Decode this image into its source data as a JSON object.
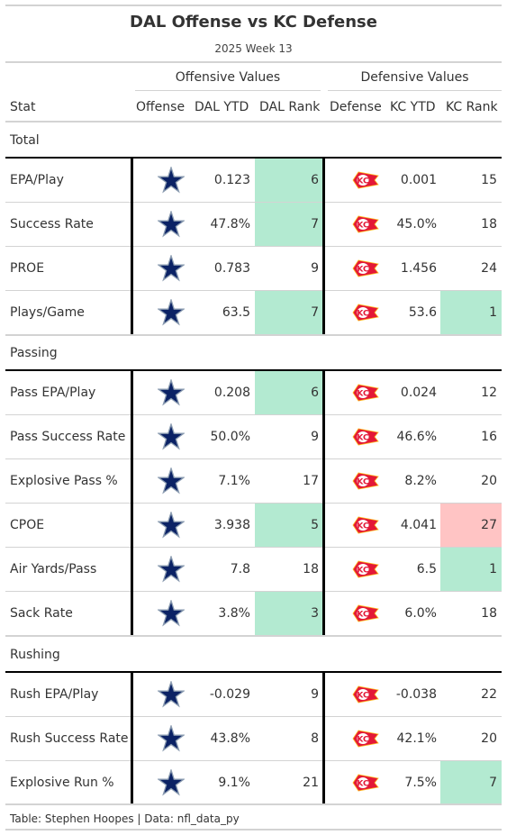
{
  "title": "DAL Offense vs KC Defense",
  "subtitle": "2025 Week 13",
  "spanners": {
    "offense": "Offensive Values",
    "defense": "Defensive Values"
  },
  "columns": {
    "stat": "Stat",
    "offense": "Offense",
    "off_ytd": "DAL YTD",
    "off_rank": "DAL Rank",
    "defense": "Defense",
    "def_ytd": "KC YTD",
    "def_rank": "KC Rank"
  },
  "colors": {
    "good": "#b3ead1",
    "bad": "#ffc4c4",
    "cowboys_blue": "#0b2265",
    "chiefs_red": "#e31837",
    "chiefs_gold": "#ffb81c"
  },
  "groups": [
    {
      "label": "Total",
      "rows": [
        {
          "stat": "EPA/Play",
          "off_ytd": "0.123",
          "off_rank": "6",
          "off_rank_hl": "good",
          "def_ytd": "0.001",
          "def_rank": "15",
          "def_rank_hl": ""
        },
        {
          "stat": "Success Rate",
          "off_ytd": "47.8%",
          "off_rank": "7",
          "off_rank_hl": "good",
          "def_ytd": "45.0%",
          "def_rank": "18",
          "def_rank_hl": ""
        },
        {
          "stat": "PROE",
          "off_ytd": "0.783",
          "off_rank": "9",
          "off_rank_hl": "",
          "def_ytd": "1.456",
          "def_rank": "24",
          "def_rank_hl": ""
        },
        {
          "stat": "Plays/Game",
          "off_ytd": "63.5",
          "off_rank": "7",
          "off_rank_hl": "good",
          "def_ytd": "53.6",
          "def_rank": "1",
          "def_rank_hl": "good"
        }
      ]
    },
    {
      "label": "Passing",
      "rows": [
        {
          "stat": "Pass EPA/Play",
          "off_ytd": "0.208",
          "off_rank": "6",
          "off_rank_hl": "good",
          "def_ytd": "0.024",
          "def_rank": "12",
          "def_rank_hl": ""
        },
        {
          "stat": "Pass Success Rate",
          "off_ytd": "50.0%",
          "off_rank": "9",
          "off_rank_hl": "",
          "def_ytd": "46.6%",
          "def_rank": "16",
          "def_rank_hl": ""
        },
        {
          "stat": "Explosive Pass %",
          "off_ytd": "7.1%",
          "off_rank": "17",
          "off_rank_hl": "",
          "def_ytd": "8.2%",
          "def_rank": "20",
          "def_rank_hl": ""
        },
        {
          "stat": "CPOE",
          "off_ytd": "3.938",
          "off_rank": "5",
          "off_rank_hl": "good",
          "def_ytd": "4.041",
          "def_rank": "27",
          "def_rank_hl": "bad"
        },
        {
          "stat": "Air Yards/Pass",
          "off_ytd": "7.8",
          "off_rank": "18",
          "off_rank_hl": "",
          "def_ytd": "6.5",
          "def_rank": "1",
          "def_rank_hl": "good"
        },
        {
          "stat": "Sack Rate",
          "off_ytd": "3.8%",
          "off_rank": "3",
          "off_rank_hl": "good",
          "def_ytd": "6.0%",
          "def_rank": "18",
          "def_rank_hl": ""
        }
      ]
    },
    {
      "label": "Rushing",
      "rows": [
        {
          "stat": "Rush EPA/Play",
          "off_ytd": "-0.029",
          "off_rank": "9",
          "off_rank_hl": "",
          "def_ytd": "-0.038",
          "def_rank": "22",
          "def_rank_hl": ""
        },
        {
          "stat": "Rush Success Rate",
          "off_ytd": "43.8%",
          "off_rank": "8",
          "off_rank_hl": "",
          "def_ytd": "42.1%",
          "def_rank": "20",
          "def_rank_hl": ""
        },
        {
          "stat": "Explosive Run %",
          "off_ytd": "9.1%",
          "off_rank": "21",
          "off_rank_hl": "",
          "def_ytd": "7.5%",
          "def_rank": "7",
          "def_rank_hl": "good"
        }
      ]
    }
  ],
  "source": "Table: Stephen Hoopes | Data: nfl_data_py"
}
